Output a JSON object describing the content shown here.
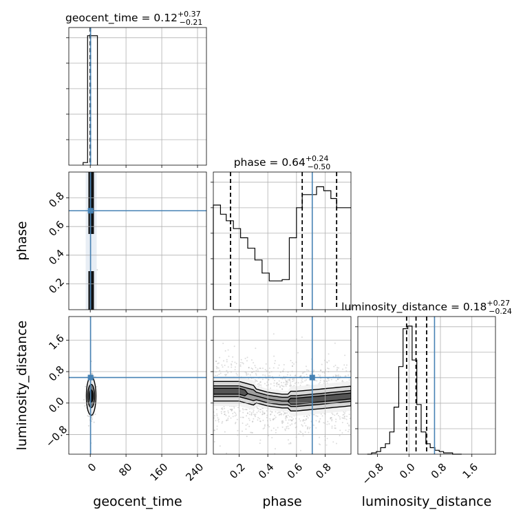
{
  "chart_data": {
    "type": "corner",
    "truth_color": "#4682b4",
    "parameters": [
      "geocent_time",
      "phase",
      "luminosity_distance"
    ],
    "titles": [
      {
        "param": "geocent_time",
        "median": "0.12",
        "plus": "+0.37",
        "minus": "−0.21"
      },
      {
        "param": "phase",
        "median": "0.64",
        "plus": "+0.24",
        "minus": "−0.50"
      },
      {
        "param": "luminosity_distance",
        "median": "0.18",
        "plus": "+0.27",
        "minus": "−0.24"
      }
    ],
    "axes": {
      "geocent_time": {
        "range": [
          -48,
          260
        ],
        "ticks": [
          0,
          80,
          160,
          240
        ],
        "tick_labels": [
          "0",
          "80",
          "160",
          "240"
        ],
        "truth": 0.7
      },
      "phase": {
        "range": [
          0.02,
          0.98
        ],
        "ticks": [
          0.2,
          0.4,
          0.6,
          0.8
        ],
        "tick_labels": [
          "0.2",
          "0.4",
          "0.6",
          "0.8"
        ],
        "truth": 0.71
      },
      "luminosity_distance": {
        "range": [
          -1.3,
          2.2
        ],
        "ticks": [
          -0.8,
          0.0,
          0.8,
          1.6
        ],
        "tick_labels": [
          "−0.8",
          "0.0",
          "0.8",
          "1.6"
        ],
        "truth": 0.65
      }
    },
    "histograms": {
      "geocent_time": {
        "edges": [
          -16,
          -6,
          5,
          16
        ],
        "counts": [
          0.02,
          0.99,
          0.99
        ],
        "quantiles": [
          -0.09,
          0.12,
          0.49
        ]
      },
      "phase": {
        "edges": [
          0.02,
          0.07,
          0.11,
          0.16,
          0.21,
          0.26,
          0.31,
          0.36,
          0.41,
          0.46,
          0.5,
          0.55,
          0.6,
          0.64,
          0.69,
          0.74,
          0.79,
          0.84,
          0.88,
          0.93,
          0.98
        ],
        "counts": [
          0.8,
          0.73,
          0.68,
          0.62,
          0.55,
          0.47,
          0.38,
          0.28,
          0.22,
          0.22,
          0.23,
          0.55,
          0.78,
          0.88,
          0.88,
          0.94,
          0.91,
          0.85,
          0.78,
          0.78
        ],
        "quantiles": [
          0.14,
          0.64,
          0.88
        ]
      },
      "luminosity_distance": {
        "edges": [
          -1.06,
          -0.95,
          -0.83,
          -0.72,
          -0.6,
          -0.49,
          -0.38,
          -0.26,
          -0.15,
          -0.03,
          0.08,
          0.2,
          0.31,
          0.43,
          0.54,
          0.66,
          0.77,
          0.88,
          1.0,
          1.11,
          1.23,
          1.34
        ],
        "counts": [
          0.0,
          0.01,
          0.02,
          0.05,
          0.08,
          0.17,
          0.36,
          0.67,
          0.96,
          0.98,
          0.72,
          0.38,
          0.17,
          0.08,
          0.05,
          0.03,
          0.02,
          0.01,
          0.01,
          0.0,
          0.0
        ],
        "quantiles": [
          -0.06,
          0.18,
          0.45
        ]
      }
    },
    "density_2d": [
      {
        "x": "geocent_time",
        "y": "phase",
        "x_center": 2,
        "x_spread": 3.5,
        "y_profile": [
          [
            0.03,
            0.95,
            0.6
          ],
          [
            0.98,
            0.95,
            0.6
          ]
        ]
      },
      {
        "x": "geocent_time",
        "y": "luminosity_distance",
        "x_center": 2,
        "x_spread": 4,
        "y_center": 0.18,
        "y_spread": 0.28
      },
      {
        "x": "phase",
        "y": "luminosity_distance",
        "ridge": [
          [
            0.0,
            0.3
          ],
          [
            0.2,
            0.3
          ],
          [
            0.4,
            0.1
          ],
          [
            0.5,
            0.05
          ],
          [
            0.6,
            0.05
          ],
          [
            0.75,
            0.1
          ],
          [
            0.98,
            0.18
          ]
        ],
        "y_spread": 0.25
      }
    ]
  }
}
